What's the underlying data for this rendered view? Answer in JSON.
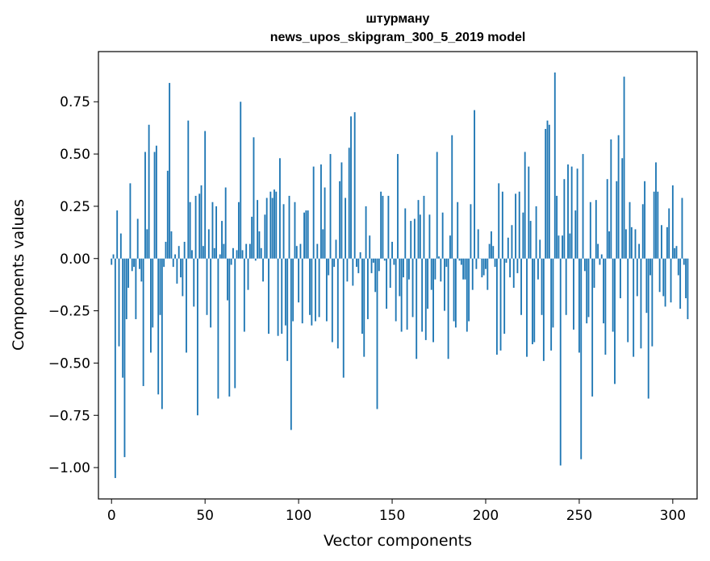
{
  "chart_data": {
    "type": "bar",
    "title": "штурману",
    "subtitle": "news_upos_skipgram_300_5_2019 model",
    "xlabel": "Vector components",
    "ylabel": "Components values",
    "xlim": [
      -7,
      313
    ],
    "ylim": [
      -1.15,
      0.99
    ],
    "xticks": [
      0,
      50,
      100,
      150,
      200,
      250,
      300
    ],
    "xtick_labels": [
      "0",
      "50",
      "100",
      "150",
      "200",
      "250",
      "300"
    ],
    "yticks": [
      -1.0,
      -0.75,
      -0.5,
      -0.25,
      0.0,
      0.25,
      0.5,
      0.75
    ],
    "ytick_labels": [
      "−1.00",
      "−0.75",
      "−0.50",
      "−0.25",
      "0.00",
      "0.25",
      "0.50",
      "0.75"
    ],
    "grid": false,
    "bar_color": "#1f77b4",
    "values": [
      -0.03,
      0.02,
      -1.05,
      0.23,
      -0.42,
      0.12,
      -0.57,
      -0.95,
      -0.29,
      -0.14,
      0.36,
      -0.06,
      -0.04,
      -0.29,
      0.19,
      -0.05,
      -0.11,
      -0.61,
      0.51,
      0.14,
      0.64,
      -0.45,
      -0.33,
      0.51,
      0.54,
      -0.65,
      -0.27,
      -0.72,
      -0.04,
      0.08,
      0.42,
      0.84,
      0.13,
      -0.04,
      0.02,
      -0.12,
      0.06,
      -0.09,
      -0.18,
      0.08,
      -0.45,
      0.66,
      0.27,
      0.04,
      -0.23,
      0.3,
      -0.75,
      0.31,
      0.35,
      0.06,
      0.61,
      -0.27,
      0.14,
      -0.33,
      0.27,
      0.05,
      0.25,
      -0.67,
      0.02,
      0.18,
      0.07,
      0.34,
      -0.2,
      -0.66,
      -0.03,
      0.05,
      -0.62,
      0.04,
      0.27,
      0.75,
      0.04,
      -0.35,
      0.07,
      -0.15,
      0.07,
      0.2,
      0.58,
      -0.01,
      0.28,
      0.13,
      0.05,
      -0.11,
      0.21,
      0.29,
      -0.36,
      0.32,
      0.29,
      0.33,
      0.32,
      -0.37,
      0.48,
      -0.36,
      0.26,
      -0.32,
      -0.49,
      0.3,
      -0.82,
      -0.3,
      0.27,
      0.06,
      -0.21,
      0.07,
      -0.31,
      0.22,
      0.23,
      0.23,
      -0.27,
      -0.32,
      0.44,
      -0.3,
      0.07,
      -0.28,
      0.45,
      0.14,
      0.34,
      -0.3,
      -0.08,
      0.5,
      -0.4,
      -0.04,
      0.09,
      -0.43,
      0.37,
      0.46,
      -0.57,
      0.29,
      -0.11,
      0.53,
      0.68,
      -0.13,
      0.7,
      -0.04,
      -0.07,
      0.03,
      -0.36,
      -0.47,
      0.25,
      -0.29,
      0.11,
      -0.07,
      -0.02,
      -0.16,
      -0.72,
      -0.06,
      0.32,
      0.3,
      -0.01,
      -0.24,
      0.3,
      -0.14,
      0.08,
      -0.03,
      -0.3,
      0.5,
      -0.18,
      -0.35,
      -0.09,
      0.24,
      -0.34,
      -0.1,
      0.18,
      -0.28,
      0.19,
      -0.48,
      0.28,
      0.21,
      -0.35,
      0.3,
      -0.39,
      -0.24,
      0.21,
      -0.15,
      -0.4,
      -0.1,
      0.51,
      0.01,
      -0.11,
      0.22,
      -0.25,
      -0.04,
      -0.48,
      0.11,
      0.59,
      -0.3,
      -0.33,
      0.27,
      -0.01,
      -0.03,
      -0.1,
      -0.1,
      -0.35,
      -0.3,
      0.26,
      -0.15,
      0.71,
      -0.05,
      0.14,
      0.0,
      -0.09,
      -0.08,
      -0.05,
      -0.15,
      0.07,
      0.13,
      0.06,
      -0.04,
      -0.46,
      0.36,
      -0.44,
      0.32,
      -0.36,
      -0.02,
      0.1,
      -0.09,
      0.16,
      -0.14,
      0.31,
      -0.07,
      0.32,
      -0.27,
      0.22,
      0.51,
      -0.47,
      0.44,
      0.18,
      -0.41,
      -0.4,
      0.25,
      -0.1,
      0.09,
      -0.27,
      -0.49,
      0.62,
      0.66,
      0.64,
      -0.44,
      -0.33,
      0.89,
      0.3,
      0.11,
      -0.99,
      0.11,
      0.38,
      -0.27,
      0.45,
      0.12,
      0.44,
      -0.34,
      0.23,
      0.43,
      -0.45,
      -0.96,
      0.5,
      -0.06,
      -0.31,
      -0.28,
      0.27,
      -0.66,
      -0.14,
      0.28,
      0.07,
      -0.03,
      0.02,
      -0.31,
      -0.46,
      0.38,
      0.13,
      0.57,
      -0.35,
      -0.6,
      0.37,
      0.59,
      -0.19,
      0.48,
      0.87,
      0.14,
      -0.4,
      0.27,
      0.15,
      -0.47,
      0.14,
      -0.18,
      0.07,
      -0.43,
      0.26,
      0.37,
      -0.26,
      -0.67,
      -0.08,
      -0.42,
      0.32,
      0.46,
      0.32,
      -0.16,
      0.16,
      -0.18,
      -0.23,
      0.15,
      0.24,
      -0.21,
      0.35,
      0.05,
      0.06,
      -0.08,
      -0.24,
      0.29,
      -0.03,
      -0.19,
      -0.29
    ]
  }
}
